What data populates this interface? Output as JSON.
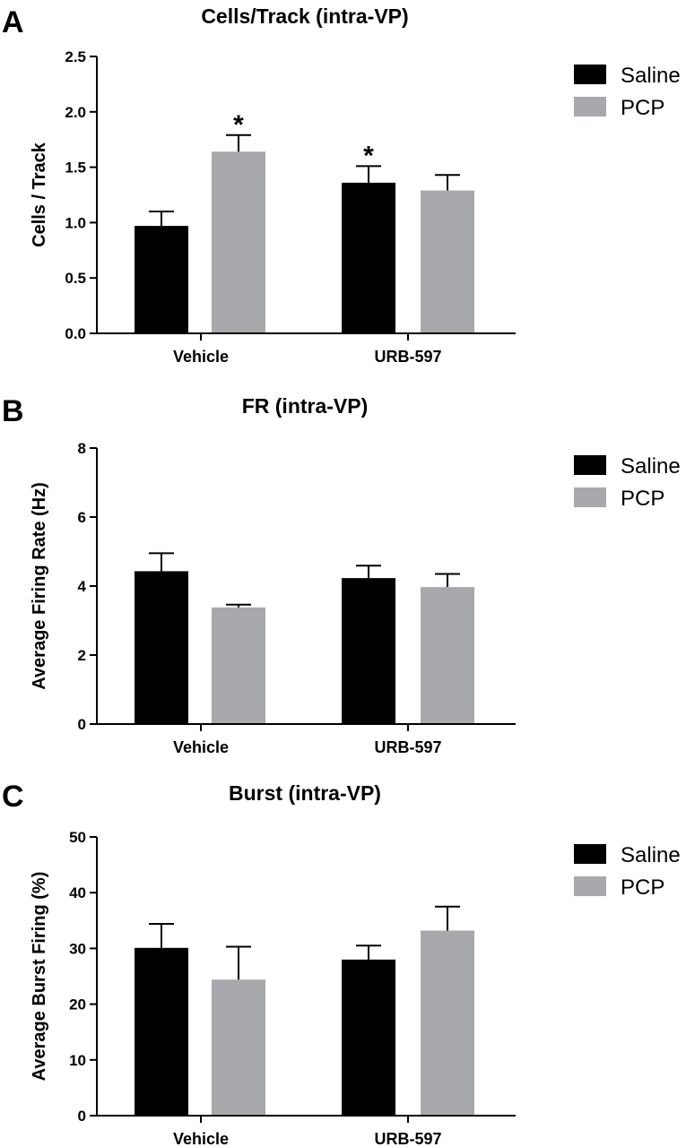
{
  "chart_data": [
    {
      "panel": "A",
      "type": "bar",
      "title": "Cells/Track (intra-VP)",
      "ylabel": "Cells / Track",
      "categories": [
        "Vehicle",
        "URB-597"
      ],
      "ylim": [
        0,
        2.5
      ],
      "yticks": [
        "0.0",
        "0.5",
        "1.0",
        "1.5",
        "2.0",
        "2.5"
      ],
      "series": [
        {
          "name": "Saline",
          "color": "#000000",
          "values": [
            0.97,
            1.36
          ],
          "errors": [
            0.13,
            0.15
          ],
          "significant": [
            false,
            true
          ]
        },
        {
          "name": "PCP",
          "color": "#a7a9ac",
          "values": [
            1.64,
            1.29
          ],
          "errors": [
            0.15,
            0.14
          ],
          "significant": [
            true,
            false
          ]
        }
      ],
      "significance_marker": "*",
      "legend": "top-right"
    },
    {
      "panel": "B",
      "type": "bar",
      "title": "FR (intra-VP)",
      "ylabel": "Average Firing Rate (Hz)",
      "categories": [
        "Vehicle",
        "URB-597"
      ],
      "ylim": [
        0,
        8
      ],
      "yticks": [
        "0",
        "2",
        "4",
        "6",
        "8"
      ],
      "series": [
        {
          "name": "Saline",
          "color": "#000000",
          "values": [
            4.43,
            4.23
          ],
          "errors": [
            0.52,
            0.36
          ],
          "significant": [
            false,
            false
          ]
        },
        {
          "name": "PCP",
          "color": "#a7a9ac",
          "values": [
            3.38,
            3.97
          ],
          "errors": [
            0.08,
            0.38
          ],
          "significant": [
            false,
            false
          ]
        }
      ],
      "legend": "top-right"
    },
    {
      "panel": "C",
      "type": "bar",
      "title": "Burst (intra-VP)",
      "ylabel": "Average Burst Firing (%)",
      "categories": [
        "Vehicle",
        "URB-597"
      ],
      "ylim": [
        0,
        50
      ],
      "yticks": [
        "0",
        "10",
        "20",
        "30",
        "40",
        "50"
      ],
      "series": [
        {
          "name": "Saline",
          "color": "#000000",
          "values": [
            30.1,
            28.0
          ],
          "errors": [
            4.3,
            2.5
          ],
          "significant": [
            false,
            false
          ]
        },
        {
          "name": "PCP",
          "color": "#a7a9ac",
          "values": [
            24.4,
            33.2
          ],
          "errors": [
            5.9,
            4.3
          ],
          "significant": [
            false,
            false
          ]
        }
      ],
      "legend": "top-right"
    }
  ]
}
